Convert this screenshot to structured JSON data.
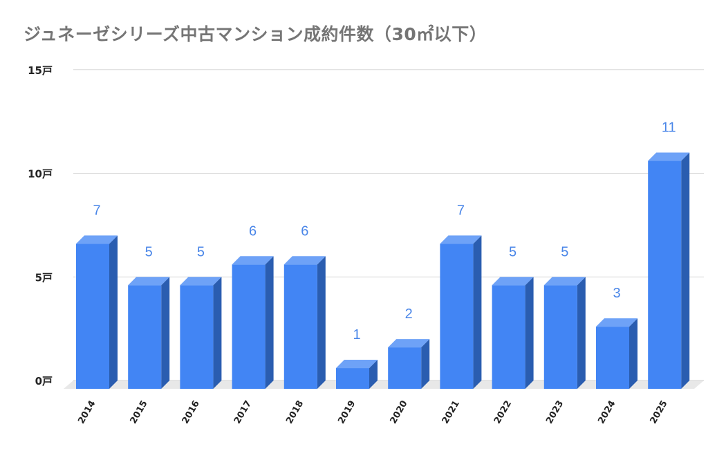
{
  "chart_data": {
    "type": "bar",
    "title": "ジュネーゼシリーズ中古マンション成約件数（30㎡以下）",
    "xlabel": "",
    "ylabel": "",
    "categories": [
      "2014",
      "2015",
      "2016",
      "2017",
      "2018",
      "2019",
      "2020",
      "2021",
      "2022",
      "2023",
      "2024",
      "2025"
    ],
    "values": [
      7,
      5,
      5,
      6,
      6,
      1,
      2,
      7,
      5,
      5,
      3,
      11
    ],
    "data_labels": [
      "7",
      "5",
      "5",
      "6",
      "6",
      "1",
      "2",
      "7",
      "5",
      "5",
      "3",
      "11"
    ],
    "ylim": [
      0,
      15
    ],
    "yticks": [
      0,
      5,
      10,
      15
    ],
    "ytick_labels": [
      "0戸",
      "5戸",
      "10戸",
      "15戸"
    ],
    "grid": true,
    "legend": "none",
    "style": "3d-bar",
    "colors": {
      "bar_front": "#4285f4",
      "bar_top": "#6ea2f7",
      "bar_side": "#2a5db0",
      "data_label": "#4a86e8",
      "gridline": "#d9d9d9",
      "floor": "#e8e8e8",
      "title": "#757575"
    }
  }
}
